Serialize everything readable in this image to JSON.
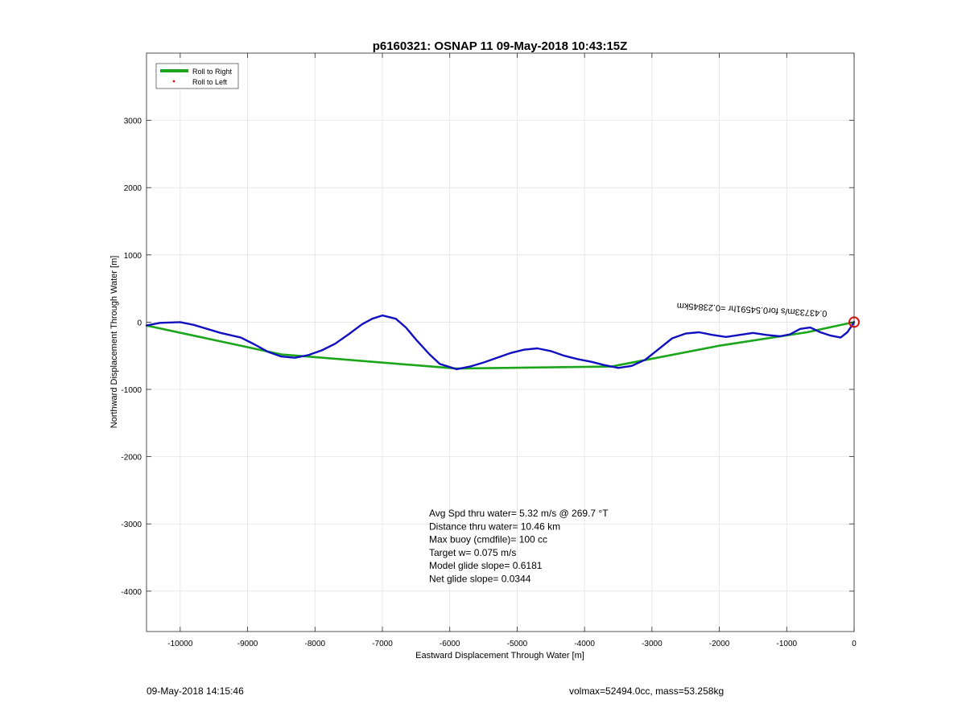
{
  "chart_data": {
    "type": "line",
    "title": "p6160321: OSNAP 11 09-May-2018 10:43:15Z",
    "xlabel": "Eastward Displacement Through Water [m]",
    "ylabel": "Northward Displacement Through Water [m]",
    "xlim": [
      -10500,
      0
    ],
    "ylim": [
      -4600,
      4000
    ],
    "xticks": [
      -10000,
      -9000,
      -8000,
      -7000,
      -6000,
      -5000,
      -4000,
      -3000,
      -2000,
      -1000,
      0
    ],
    "yticks": [
      -4000,
      -3000,
      -2000,
      -1000,
      0,
      1000,
      2000,
      3000
    ],
    "grid": true,
    "legend_position": "top-left",
    "colors": {
      "blue_track": "#1010c0",
      "green_track": "#1aa51a",
      "red_marker": "#e01010"
    },
    "series": [
      {
        "name": "Roll to Right",
        "color": "#1aa51a",
        "x": [
          -10500,
          -8500,
          -5900,
          -3600,
          -2000,
          -700,
          0
        ],
        "y": [
          -50,
          -480,
          -690,
          -660,
          -350,
          -150,
          0
        ]
      },
      {
        "name": "Roll to Left",
        "color": "#e01010",
        "x": [],
        "y": []
      },
      {
        "color": "#1010c0",
        "x": [
          -10500,
          -10300,
          -10000,
          -9800,
          -9600,
          -9400,
          -9100,
          -8900,
          -8700,
          -8500,
          -8300,
          -8100,
          -7900,
          -7700,
          -7500,
          -7300,
          -7150,
          -7000,
          -6800,
          -6650,
          -6500,
          -6300,
          -6150,
          -5900,
          -5700,
          -5500,
          -5300,
          -5100,
          -4900,
          -4700,
          -4500,
          -4300,
          -4100,
          -3900,
          -3700,
          -3500,
          -3300,
          -3100,
          -2900,
          -2700,
          -2500,
          -2300,
          -2100,
          -1900,
          -1700,
          -1500,
          -1300,
          -1100,
          -950,
          -800,
          -650,
          -500,
          -350,
          -200,
          -100,
          0
        ],
        "y": [
          -50,
          -10,
          0,
          -40,
          -100,
          -160,
          -230,
          -330,
          -440,
          -510,
          -530,
          -490,
          -420,
          -320,
          -180,
          -30,
          50,
          100,
          50,
          -80,
          -260,
          -480,
          -620,
          -700,
          -660,
          -600,
          -530,
          -460,
          -410,
          -390,
          -430,
          -500,
          -550,
          -590,
          -640,
          -680,
          -650,
          -560,
          -400,
          -240,
          -170,
          -150,
          -190,
          -220,
          -190,
          -160,
          -190,
          -210,
          -180,
          -100,
          -80,
          -150,
          -200,
          -230,
          -150,
          0
        ]
      }
    ],
    "annotations": [
      {
        "text": "0.43733m/s for0.54591hr =0.23845km",
        "x": -400,
        "y": 0
      },
      {
        "text": "Avg Spd thru water=  5.32 m/s @ 269.7 °T",
        "x": -6350,
        "y": -3200
      },
      {
        "text": "Distance thru water= 10.46 km",
        "x": -6350,
        "y": -3200
      },
      {
        "text": "Max buoy (cmdfile)= 100 cc",
        "x": -6350,
        "y": -3200
      },
      {
        "text": "Target w= 0.075 m/s",
        "x": -6350,
        "y": -3200
      },
      {
        "text": "Model glide slope= 0.6181",
        "x": -6350,
        "y": -3200
      },
      {
        "text": "Net glide slope= 0.0344",
        "x": -6350,
        "y": -3200
      }
    ],
    "end_marker": {
      "x": 0,
      "y": 0,
      "symbol": "circle"
    }
  },
  "footer": {
    "date": "09-May-2018 14:15:46",
    "volmax": "volmax=52494.0cc, mass=53.258kg"
  }
}
